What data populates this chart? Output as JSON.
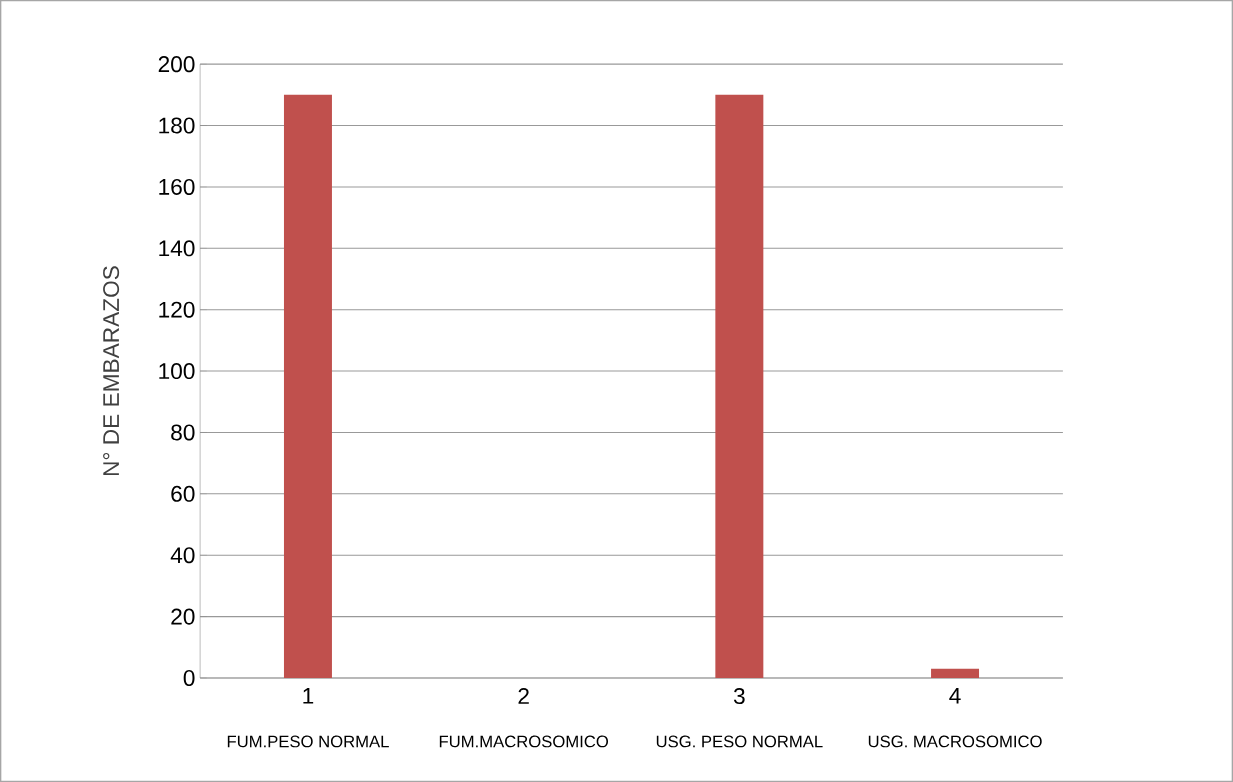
{
  "chart_data": {
    "type": "bar",
    "ylabel": "N° DE EMBARAZOS",
    "categories": [
      "1",
      "2",
      "3",
      "4"
    ],
    "values": [
      190,
      0,
      190,
      3
    ],
    "color": "#c0504d",
    "ylim": [
      0,
      200
    ],
    "yticks": [
      0,
      20,
      40,
      60,
      80,
      100,
      120,
      140,
      160,
      180,
      200
    ],
    "grid": "y",
    "annotations": [
      "FUM.PESO NORMAL",
      "FUM.MACROSOMICO",
      "USG. PESO NORMAL",
      "USG. MACROSOMICO"
    ]
  }
}
